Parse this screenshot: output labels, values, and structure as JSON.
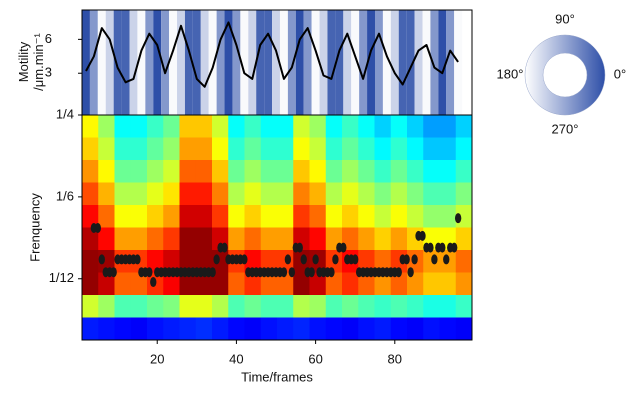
{
  "chart_data": [
    {
      "type": "line",
      "ylabel": [
        "Motility",
        "/μm.min⁻¹"
      ],
      "x": [
        2,
        4,
        6,
        8,
        10,
        12,
        14,
        16,
        18,
        20,
        22,
        24,
        26,
        28,
        30,
        32,
        34,
        36,
        38,
        40,
        42,
        44,
        46,
        48,
        50,
        52,
        54,
        56,
        58,
        60,
        62,
        64,
        66,
        68,
        70,
        72,
        74,
        76,
        78,
        80,
        82,
        84,
        86,
        88,
        90,
        92,
        94,
        96
      ],
      "values": [
        3.2,
        4.5,
        7.0,
        6.0,
        3.5,
        2.2,
        2.5,
        5.0,
        6.5,
        5.5,
        3.0,
        5.0,
        7.2,
        5.0,
        2.5,
        1.8,
        3.5,
        6.0,
        7.5,
        5.5,
        3.0,
        2.5,
        5.5,
        6.5,
        5.0,
        2.5,
        3.5,
        6.0,
        7.0,
        5.0,
        2.8,
        2.5,
        5.0,
        6.5,
        4.5,
        2.5,
        5.0,
        6.5,
        4.5,
        3.0,
        2.0,
        3.5,
        5.0,
        5.5,
        3.5,
        3.0,
        5.0,
        4.0
      ],
      "phase": [
        0,
        80,
        160,
        240,
        320,
        40,
        120,
        200,
        280,
        0,
        80,
        160,
        240,
        320,
        40,
        120,
        200,
        280,
        0,
        80,
        160,
        240,
        320,
        40,
        120,
        200,
        280,
        0,
        80,
        160,
        240,
        320,
        40,
        120,
        200,
        280,
        0,
        80,
        160,
        240,
        320,
        40,
        120,
        200,
        280,
        0,
        80,
        160
      ],
      "color": "#000000",
      "xlim": [
        1,
        99.5
      ],
      "ylim": [
        -0.7,
        8.6
      ],
      "yticks": [
        3,
        6
      ],
      "phase_legend": [
        {
          "value": 90,
          "label": "90°"
        },
        {
          "value": 180,
          "label": "180°"
        },
        {
          "value": 0,
          "label": "0°"
        },
        {
          "value": 270,
          "label": "270°"
        }
      ]
    },
    {
      "type": "heatmap",
      "xlabel": "Time/frames",
      "ylabel": "Frenquency",
      "xlim": [
        1,
        99.5
      ],
      "ylim": [
        0.021,
        0.25
      ],
      "xticks": [
        20,
        40,
        60,
        80
      ],
      "yticks": [
        {
          "value": 0.25,
          "label": "1/4"
        },
        {
          "value": 0.16667,
          "label": "1/6"
        },
        {
          "value": 0.08333,
          "label": "1/12"
        }
      ],
      "z": [
        [
          0.63,
          0.53,
          0.38,
          0.38,
          0.43,
          0.48,
          0.68,
          0.68,
          0.58,
          0.38,
          0.43,
          0.38,
          0.38,
          0.58,
          0.53,
          0.38,
          0.43,
          0.38,
          0.33,
          0.38,
          0.33,
          0.28,
          0.28,
          0.33
        ],
        [
          0.67,
          0.57,
          0.42,
          0.42,
          0.47,
          0.52,
          0.72,
          0.72,
          0.62,
          0.42,
          0.47,
          0.42,
          0.42,
          0.62,
          0.57,
          0.42,
          0.47,
          0.42,
          0.37,
          0.42,
          0.37,
          0.32,
          0.32,
          0.37
        ],
        [
          0.73,
          0.63,
          0.48,
          0.48,
          0.53,
          0.58,
          0.78,
          0.78,
          0.68,
          0.48,
          0.53,
          0.48,
          0.48,
          0.68,
          0.63,
          0.48,
          0.53,
          0.48,
          0.43,
          0.48,
          0.43,
          0.38,
          0.38,
          0.43
        ],
        [
          0.8,
          0.7,
          0.55,
          0.55,
          0.6,
          0.65,
          0.85,
          0.85,
          0.75,
          0.55,
          0.6,
          0.55,
          0.55,
          0.75,
          0.7,
          0.55,
          0.6,
          0.55,
          0.5,
          0.55,
          0.5,
          0.45,
          0.45,
          0.5
        ],
        [
          0.87,
          0.77,
          0.62,
          0.62,
          0.67,
          0.72,
          0.92,
          0.92,
          0.82,
          0.62,
          0.67,
          0.62,
          0.62,
          0.82,
          0.77,
          0.62,
          0.67,
          0.62,
          0.57,
          0.62,
          0.57,
          0.52,
          0.52,
          0.57
        ],
        [
          0.95,
          0.87,
          0.72,
          0.72,
          0.77,
          0.82,
          0.98,
          0.98,
          0.92,
          0.72,
          0.77,
          0.72,
          0.72,
          0.92,
          0.87,
          0.72,
          0.77,
          0.72,
          0.67,
          0.72,
          0.67,
          0.62,
          0.62,
          0.67
        ],
        [
          0.98,
          0.97,
          0.82,
          0.82,
          0.87,
          0.92,
          0.98,
          0.98,
          0.98,
          0.82,
          0.87,
          0.82,
          0.82,
          0.98,
          0.97,
          0.82,
          0.87,
          0.82,
          0.77,
          0.82,
          0.77,
          0.72,
          0.72,
          0.77
        ],
        [
          0.98,
          0.93,
          0.78,
          0.78,
          0.83,
          0.88,
          0.98,
          0.98,
          0.98,
          0.78,
          0.83,
          0.78,
          0.78,
          0.98,
          0.93,
          0.78,
          0.83,
          0.78,
          0.73,
          0.78,
          0.73,
          0.68,
          0.68,
          0.73
        ],
        [
          0.58,
          0.53,
          0.45,
          0.45,
          0.48,
          0.5,
          0.6,
          0.6,
          0.55,
          0.45,
          0.48,
          0.45,
          0.45,
          0.55,
          0.53,
          0.45,
          0.48,
          0.45,
          0.43,
          0.45,
          0.43,
          0.4,
          0.4,
          0.43
        ],
        [
          0.15,
          0.14,
          0.13,
          0.12,
          0.14,
          0.15,
          0.16,
          0.17,
          0.15,
          0.13,
          0.12,
          0.14,
          0.15,
          0.16,
          0.14,
          0.13,
          0.12,
          0.14,
          0.15,
          0.13,
          0.12,
          0.14,
          0.13,
          0.12
        ]
      ],
      "ridge": {
        "x": [
          4,
          5,
          6,
          7,
          8,
          9,
          10,
          11,
          12,
          13,
          14,
          15,
          16,
          17,
          18,
          19,
          20,
          21,
          22,
          23,
          24,
          25,
          26,
          27,
          28,
          29,
          30,
          31,
          32,
          33,
          34,
          35,
          36,
          37,
          38,
          39,
          40,
          41,
          42,
          43,
          44,
          45,
          46,
          47,
          48,
          49,
          50,
          51,
          52,
          53,
          54,
          55,
          56,
          57,
          58,
          59,
          60,
          61,
          62,
          63,
          64,
          65,
          66,
          67,
          68,
          69,
          70,
          71,
          72,
          73,
          74,
          75,
          76,
          77,
          78,
          79,
          80,
          81,
          82,
          83,
          84,
          85,
          86,
          87,
          88,
          89,
          90,
          91,
          92,
          93,
          94,
          95,
          96
        ],
        "y": [
          0.135,
          0.135,
          0.103,
          0.09,
          0.09,
          0.09,
          0.103,
          0.103,
          0.103,
          0.103,
          0.103,
          0.103,
          0.09,
          0.09,
          0.09,
          0.08,
          0.09,
          0.09,
          0.09,
          0.09,
          0.09,
          0.09,
          0.09,
          0.09,
          0.09,
          0.09,
          0.09,
          0.09,
          0.09,
          0.09,
          0.09,
          0.103,
          0.115,
          0.115,
          0.103,
          0.103,
          0.103,
          0.103,
          0.103,
          0.09,
          0.09,
          0.09,
          0.09,
          0.09,
          0.09,
          0.09,
          0.09,
          0.09,
          0.09,
          0.103,
          0.09,
          0.115,
          0.115,
          0.103,
          0.09,
          0.09,
          0.103,
          0.09,
          0.09,
          0.09,
          0.09,
          0.103,
          0.115,
          0.115,
          0.103,
          0.103,
          0.103,
          0.09,
          0.09,
          0.09,
          0.09,
          0.09,
          0.09,
          0.09,
          0.09,
          0.09,
          0.09,
          0.09,
          0.103,
          0.103,
          0.09,
          0.103,
          0.127,
          0.127,
          0.115,
          0.115,
          0.103,
          0.115,
          0.115,
          0.103,
          0.115,
          0.115,
          0.145
        ],
        "color": "#1a1a1a"
      }
    }
  ]
}
